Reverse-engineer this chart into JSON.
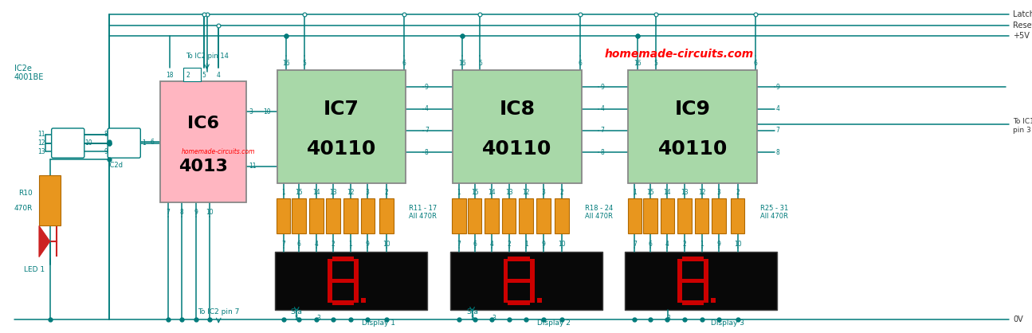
{
  "bg_color": "#ffffff",
  "wire_color": "#007B7B",
  "wire_lw": 1.1,
  "ic6_color": "#FFB6C1",
  "ic6_edge": "#999999",
  "ic6_label1": "IC6",
  "ic6_label2": "4013",
  "ic7_color": "#A8D8A8",
  "ic7_edge": "#999999",
  "ic7_label1": "IC7",
  "ic7_label2": "40110",
  "ic8_color": "#A8D8A8",
  "ic8_label1": "IC8",
  "ic8_label2": "40110",
  "ic9_color": "#A8D8A8",
  "ic9_label1": "IC9",
  "ic9_label2": "40110",
  "watermark_text": "homemade-circuits.com",
  "watermark_color": "#FF0000",
  "watermark2_text": "homemade-circuits.com",
  "resistor_color": "#E8961E",
  "resistor_edge": "#B06800",
  "display_bg": "#080808",
  "display_digit_color": "#CC0000",
  "label_color": "#007B7B",
  "right_labels": [
    "Latch",
    "Reset",
    "+5V"
  ],
  "display_labels": [
    "Display 1",
    "Display 2",
    "Display 3"
  ],
  "res_groups": [
    {
      "label": "R11 - 17\nAll 470R",
      "pins_top": [
        "1",
        "15",
        "14",
        "13",
        "12",
        "3",
        "2"
      ],
      "pins_bot": [
        "7",
        "6",
        "4",
        "2",
        "1",
        "9",
        "10"
      ]
    },
    {
      "label": "R18 - 24\nAll 470R",
      "pins_top": [
        "1",
        "15",
        "14",
        "13",
        "12",
        "3",
        "2"
      ],
      "pins_bot": [
        "7",
        "6",
        "4",
        "2",
        "1",
        "9",
        "10"
      ]
    },
    {
      "label": "R25 - 31\nAll 470R",
      "pins_top": [
        "1",
        "15",
        "14",
        "13",
        "12",
        "3",
        "2"
      ],
      "pins_bot": [
        "7",
        "6",
        "4",
        "2",
        "1",
        "9",
        "10"
      ]
    }
  ]
}
